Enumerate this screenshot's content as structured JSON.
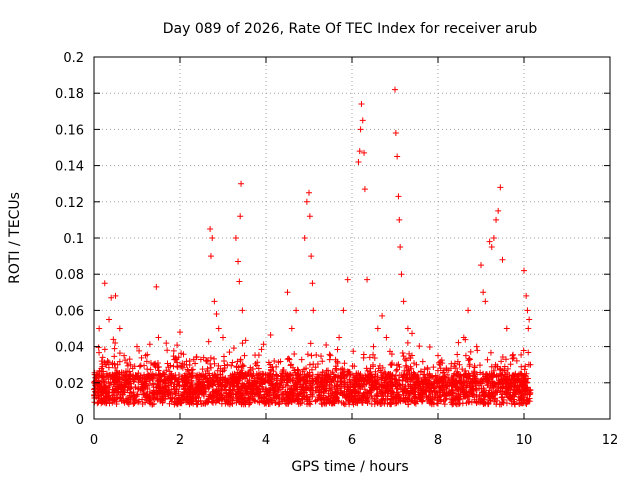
{
  "chart_data": {
    "type": "scatter",
    "title": "Day 089 of 2026, Rate Of TEC Index for receiver arub",
    "xlabel": "GPS time / hours",
    "ylabel": "ROTI / TECUs",
    "xlim": [
      0,
      12
    ],
    "ylim": [
      0,
      0.2
    ],
    "x_ticks": [
      0,
      2,
      4,
      6,
      8,
      10,
      12
    ],
    "x_tick_labels": [
      "0",
      "2",
      "4",
      "6",
      "8",
      "10",
      "12"
    ],
    "y_ticks": [
      0,
      0.02,
      0.04,
      0.06,
      0.08,
      0.1,
      0.12,
      0.14,
      0.16,
      0.18,
      0.2
    ],
    "y_tick_labels": [
      "0",
      "0.02",
      "0.04",
      "0.06",
      "0.08",
      "0.1",
      "0.12",
      "0.14",
      "0.16",
      "0.18",
      "0.2"
    ],
    "grid": true,
    "marker": "+",
    "color": "#ff0000",
    "series": [
      {
        "name": "ROTI",
        "x": [
          0.05,
          0.12,
          0.18,
          0.25,
          0.3,
          0.35,
          0.4,
          0.45,
          0.5,
          0.55,
          0.6,
          0.7,
          0.8,
          0.9,
          1.0,
          1.1,
          1.2,
          1.3,
          1.4,
          1.45,
          1.5,
          1.6,
          1.7,
          1.8,
          1.9,
          2.0,
          2.1,
          2.2,
          2.7,
          2.72,
          2.75,
          2.8,
          2.85,
          2.9,
          3.0,
          3.1,
          3.3,
          3.35,
          3.38,
          3.4,
          3.42,
          3.45,
          3.5,
          3.6,
          4.5,
          4.6,
          4.7,
          4.9,
          4.95,
          5.0,
          5.02,
          5.05,
          5.08,
          5.1,
          5.5,
          5.7,
          5.8,
          5.9,
          6.15,
          6.18,
          6.2,
          6.22,
          6.25,
          6.28,
          6.3,
          6.35,
          6.5,
          6.6,
          6.7,
          6.8,
          6.9,
          7.0,
          7.02,
          7.05,
          7.08,
          7.1,
          7.12,
          7.15,
          7.2,
          7.3,
          7.5,
          7.8,
          8.0,
          8.3,
          8.5,
          8.6,
          8.7,
          8.9,
          9.0,
          9.05,
          9.1,
          9.2,
          9.25,
          9.3,
          9.35,
          9.4,
          9.45,
          9.5,
          9.6,
          9.8,
          10.0,
          10.05,
          10.08,
          10.1,
          10.12,
          10.15
        ],
        "y": [
          0.012,
          0.05,
          0.032,
          0.075,
          0.025,
          0.055,
          0.067,
          0.044,
          0.068,
          0.03,
          0.05,
          0.035,
          0.018,
          0.028,
          0.04,
          0.02,
          0.035,
          0.015,
          0.03,
          0.073,
          0.045,
          0.025,
          0.038,
          0.02,
          0.033,
          0.048,
          0.03,
          0.022,
          0.105,
          0.09,
          0.1,
          0.065,
          0.058,
          0.05,
          0.045,
          0.03,
          0.1,
          0.087,
          0.076,
          0.112,
          0.13,
          0.06,
          0.035,
          0.025,
          0.07,
          0.05,
          0.06,
          0.1,
          0.12,
          0.125,
          0.112,
          0.09,
          0.075,
          0.06,
          0.035,
          0.045,
          0.06,
          0.077,
          0.142,
          0.148,
          0.16,
          0.174,
          0.165,
          0.147,
          0.127,
          0.077,
          0.04,
          0.05,
          0.057,
          0.045,
          0.03,
          0.182,
          0.158,
          0.145,
          0.123,
          0.11,
          0.095,
          0.08,
          0.065,
          0.05,
          0.03,
          0.025,
          0.035,
          0.02,
          0.03,
          0.045,
          0.06,
          0.04,
          0.085,
          0.07,
          0.065,
          0.098,
          0.095,
          0.1,
          0.11,
          0.115,
          0.128,
          0.088,
          0.05,
          0.025,
          0.082,
          0.068,
          0.06,
          0.05,
          0.055,
          0.03
        ]
      }
    ]
  }
}
